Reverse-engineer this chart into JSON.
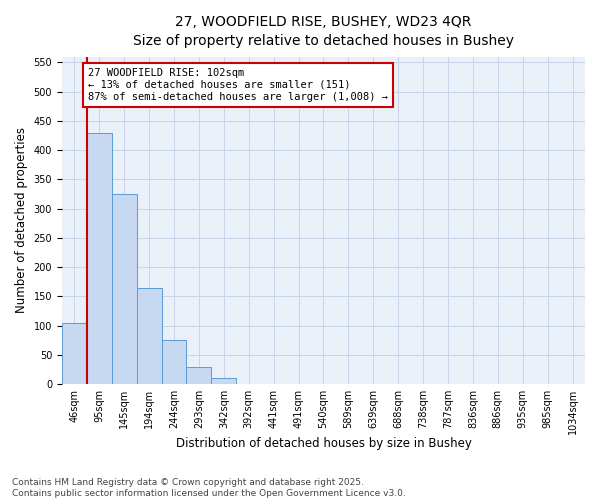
{
  "title_line1": "27, WOODFIELD RISE, BUSHEY, WD23 4QR",
  "title_line2": "Size of property relative to detached houses in Bushey",
  "xlabel": "Distribution of detached houses by size in Bushey",
  "ylabel": "Number of detached properties",
  "categories": [
    "46sqm",
    "95sqm",
    "145sqm",
    "194sqm",
    "244sqm",
    "293sqm",
    "342sqm",
    "392sqm",
    "441sqm",
    "491sqm",
    "540sqm",
    "589sqm",
    "639sqm",
    "688sqm",
    "738sqm",
    "787sqm",
    "836sqm",
    "886sqm",
    "935sqm",
    "985sqm",
    "1034sqm"
  ],
  "values": [
    105,
    430,
    325,
    165,
    75,
    30,
    10,
    0,
    0,
    0,
    0,
    0,
    0,
    0,
    0,
    0,
    0,
    0,
    0,
    0,
    0
  ],
  "bar_color": "#c7d9f0",
  "bar_edge_color": "#5b9bd5",
  "vline_x": 0.5,
  "vline_color": "#cc0000",
  "annotation_box_text": "27 WOODFIELD RISE: 102sqm\n← 13% of detached houses are smaller (151)\n87% of semi-detached houses are larger (1,008) →",
  "annotation_box_color": "#cc0000",
  "annotation_box_bg": "#ffffff",
  "ylim": [
    0,
    560
  ],
  "yticks": [
    0,
    50,
    100,
    150,
    200,
    250,
    300,
    350,
    400,
    450,
    500,
    550
  ],
  "grid_color": "#c8d4e8",
  "bg_color": "#eaf0f8",
  "footer_line1": "Contains HM Land Registry data © Crown copyright and database right 2025.",
  "footer_line2": "Contains public sector information licensed under the Open Government Licence v3.0.",
  "title_fontsize": 10,
  "subtitle_fontsize": 9,
  "axis_label_fontsize": 8.5,
  "tick_fontsize": 7,
  "annotation_fontsize": 7.5,
  "footer_fontsize": 6.5
}
